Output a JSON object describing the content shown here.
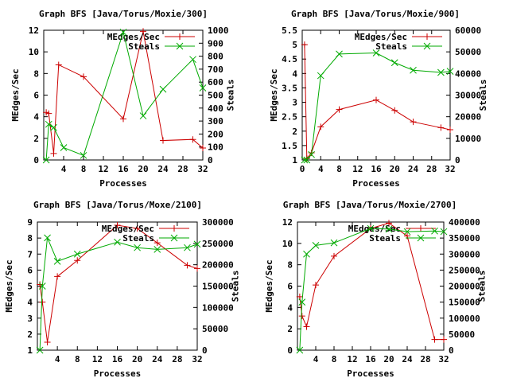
{
  "chart_data": [
    {
      "type": "line",
      "title": "Graph BFS [Java/Torus/Moxie/300]",
      "xlabel": "Processes",
      "ylabel": "MEdges/Sec",
      "y2label": "Steals",
      "xlim": [
        0,
        32
      ],
      "ylim": [
        0,
        12
      ],
      "y2lim": [
        0,
        1000
      ],
      "xticks": [
        "4",
        "8",
        "12",
        "16",
        "20",
        "24",
        "28",
        "32"
      ],
      "yticks": [
        "0",
        "2",
        "4",
        "6",
        "8",
        "10",
        "12"
      ],
      "y2ticks": [
        "0",
        "100",
        "200",
        "300",
        "400",
        "500",
        "600",
        "700",
        "800",
        "900",
        "1000"
      ],
      "legend": "top-right",
      "series": [
        {
          "name": "MEdges/Sec",
          "axis": "y",
          "color": "#cc0000",
          "marker": "plus",
          "x": [
            0.5,
            1,
            2,
            3,
            8,
            16,
            20,
            24,
            30,
            32
          ],
          "y": [
            4.4,
            4.3,
            0.6,
            8.8,
            7.7,
            3.8,
            11.9,
            1.8,
            1.9,
            1.1
          ]
        },
        {
          "name": "Steals",
          "axis": "y2",
          "color": "#00aa00",
          "marker": "cross",
          "x": [
            0.5,
            1,
            2,
            4,
            8,
            16,
            20,
            24,
            30,
            32
          ],
          "y": [
            0,
            275,
            250,
            95,
            35,
            985,
            340,
            545,
            775,
            555
          ]
        }
      ]
    },
    {
      "type": "line",
      "title": "Graph BFS [Java/Torus/Moxie/900]",
      "xlabel": "Processes",
      "ylabel": "MEdges/Sec",
      "y2label": "Steals",
      "xlim": [
        0,
        32
      ],
      "ylim": [
        1,
        5.5
      ],
      "y2lim": [
        0,
        60000
      ],
      "xticks": [
        "0",
        "4",
        "8",
        "12",
        "16",
        "20",
        "24",
        "28",
        "32"
      ],
      "yticks": [
        "1",
        "1.5",
        "2",
        "2.5",
        "3",
        "3.5",
        "4",
        "4.5",
        "5",
        "5.5"
      ],
      "y2ticks": [
        "0",
        "10000",
        "20000",
        "30000",
        "40000",
        "50000",
        "60000"
      ],
      "legend": "top-right",
      "series": [
        {
          "name": "MEdges/Sec",
          "axis": "y",
          "color": "#cc0000",
          "marker": "plus",
          "x": [
            0.5,
            1,
            2,
            4,
            8,
            16,
            20,
            24,
            30,
            32
          ],
          "y": [
            5.0,
            1.05,
            1.25,
            2.15,
            2.75,
            3.08,
            2.72,
            2.32,
            2.12,
            2.05
          ]
        },
        {
          "name": "Steals",
          "axis": "y2",
          "color": "#00aa00",
          "marker": "cross",
          "x": [
            0.5,
            1,
            2,
            4,
            8,
            16,
            20,
            24,
            30,
            32
          ],
          "y": [
            0,
            0,
            2500,
            39000,
            49000,
            49500,
            45000,
            41500,
            40500,
            41000
          ]
        }
      ]
    },
    {
      "type": "line",
      "title": "Graph BFS [Java/Torus/Moxe/2100]",
      "xlabel": "Processes",
      "ylabel": "MEdges/Sec",
      "y2label": "Steals",
      "xlim": [
        0,
        32
      ],
      "ylim": [
        1,
        9
      ],
      "y2lim": [
        0,
        300000
      ],
      "xticks": [
        "4",
        "8",
        "12",
        "16",
        "20",
        "24",
        "28",
        "32"
      ],
      "yticks": [
        "1",
        "2",
        "3",
        "4",
        "5",
        "6",
        "7",
        "8",
        "9"
      ],
      "y2ticks": [
        "0",
        "50000",
        "100000",
        "150000",
        "200000",
        "250000",
        "300000"
      ],
      "legend": "top-right",
      "series": [
        {
          "name": "MEdges/Sec",
          "axis": "y",
          "color": "#cc0000",
          "marker": "plus",
          "x": [
            0.5,
            1,
            2,
            4,
            8,
            16,
            20,
            24,
            30,
            32
          ],
          "y": [
            5.1,
            4.0,
            1.5,
            5.6,
            6.6,
            8.8,
            8.6,
            7.7,
            6.3,
            6.1
          ]
        },
        {
          "name": "Steals",
          "axis": "y2",
          "color": "#00aa00",
          "marker": "cross",
          "x": [
            0.5,
            1,
            2,
            4,
            8,
            16,
            20,
            24,
            30,
            32
          ],
          "y": [
            0,
            150000,
            263000,
            208000,
            225000,
            253000,
            240000,
            236000,
            240000,
            248000
          ]
        }
      ]
    },
    {
      "type": "line",
      "title": "Graph BFS [Java/Torus/Moxie/2700]",
      "xlabel": "Processes",
      "ylabel": "MEdges/Sec",
      "y2label": "Steals",
      "xlim": [
        0,
        32
      ],
      "ylim": [
        0,
        12
      ],
      "y2lim": [
        0,
        400000
      ],
      "xticks": [
        "4",
        "8",
        "12",
        "16",
        "20",
        "24",
        "28",
        "32"
      ],
      "yticks": [
        "0",
        "2",
        "4",
        "6",
        "8",
        "10",
        "12"
      ],
      "y2ticks": [
        "0",
        "50000",
        "100000",
        "150000",
        "200000",
        "250000",
        "300000",
        "350000",
        "400000"
      ],
      "legend": "top-right",
      "series": [
        {
          "name": "MEdges/Sec",
          "axis": "y",
          "color": "#cc0000",
          "marker": "plus",
          "x": [
            0.5,
            1,
            2,
            4,
            8,
            16,
            20,
            24,
            30,
            32
          ],
          "y": [
            5.0,
            3.2,
            2.2,
            6.1,
            8.8,
            11.4,
            11.9,
            10.7,
            1.0,
            1.0
          ]
        },
        {
          "name": "Steals",
          "axis": "y2",
          "color": "#00aa00",
          "marker": "cross",
          "x": [
            0.5,
            1,
            2,
            4,
            8,
            16,
            20,
            24,
            30,
            32
          ],
          "y": [
            0,
            150000,
            300000,
            327000,
            335000,
            380000,
            378000,
            370000,
            372000,
            370000
          ]
        }
      ]
    }
  ]
}
